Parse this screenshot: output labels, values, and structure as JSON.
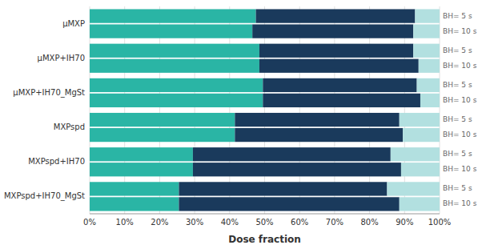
{
  "chart_data": {
    "type": "bar",
    "orientation": "horizontal",
    "stacked": true,
    "grid": true,
    "categories": [
      "μMXP",
      "μMXP+IH70",
      "μMXP+IH70_MgSt",
      "MXPspd",
      "MXPspd+IH70",
      "MXPspd+IH70_MgSt"
    ],
    "bar_labels": [
      "BH= 5 s",
      "BH= 10 s"
    ],
    "series": [
      {
        "color": "#2ab5a5",
        "values": [
          [
            0.475,
            0.465
          ],
          [
            0.485,
            0.485
          ],
          [
            0.495,
            0.495
          ],
          [
            0.415,
            0.415
          ],
          [
            0.295,
            0.295
          ],
          [
            0.255,
            0.255
          ]
        ]
      },
      {
        "color": "#1a3a5c",
        "values": [
          [
            0.455,
            0.46
          ],
          [
            0.44,
            0.455
          ],
          [
            0.44,
            0.45
          ],
          [
            0.47,
            0.48
          ],
          [
            0.565,
            0.595
          ],
          [
            0.595,
            0.63
          ]
        ]
      },
      {
        "color": "#b2e0e0",
        "values": [
          [
            0.07,
            0.075
          ],
          [
            0.075,
            0.06
          ],
          [
            0.065,
            0.055
          ],
          [
            0.115,
            0.105
          ],
          [
            0.14,
            0.11
          ],
          [
            0.15,
            0.115
          ]
        ]
      }
    ],
    "xlabel": "Dose fraction",
    "xlim": [
      0,
      1.0
    ],
    "xticks": [
      {
        "value": 0.0,
        "label": "0%"
      },
      {
        "value": 0.1,
        "label": "10%"
      },
      {
        "value": 0.2,
        "label": "20%"
      },
      {
        "value": 0.3,
        "label": "30%"
      },
      {
        "value": 0.4,
        "label": "40%"
      },
      {
        "value": 0.5,
        "label": "50%"
      },
      {
        "value": 0.6,
        "label": "60%"
      },
      {
        "value": 0.7,
        "label": "70%"
      },
      {
        "value": 0.8,
        "label": "80%"
      },
      {
        "value": 0.9,
        "label": "90%"
      },
      {
        "value": 1.0,
        "label": "100%"
      }
    ]
  }
}
